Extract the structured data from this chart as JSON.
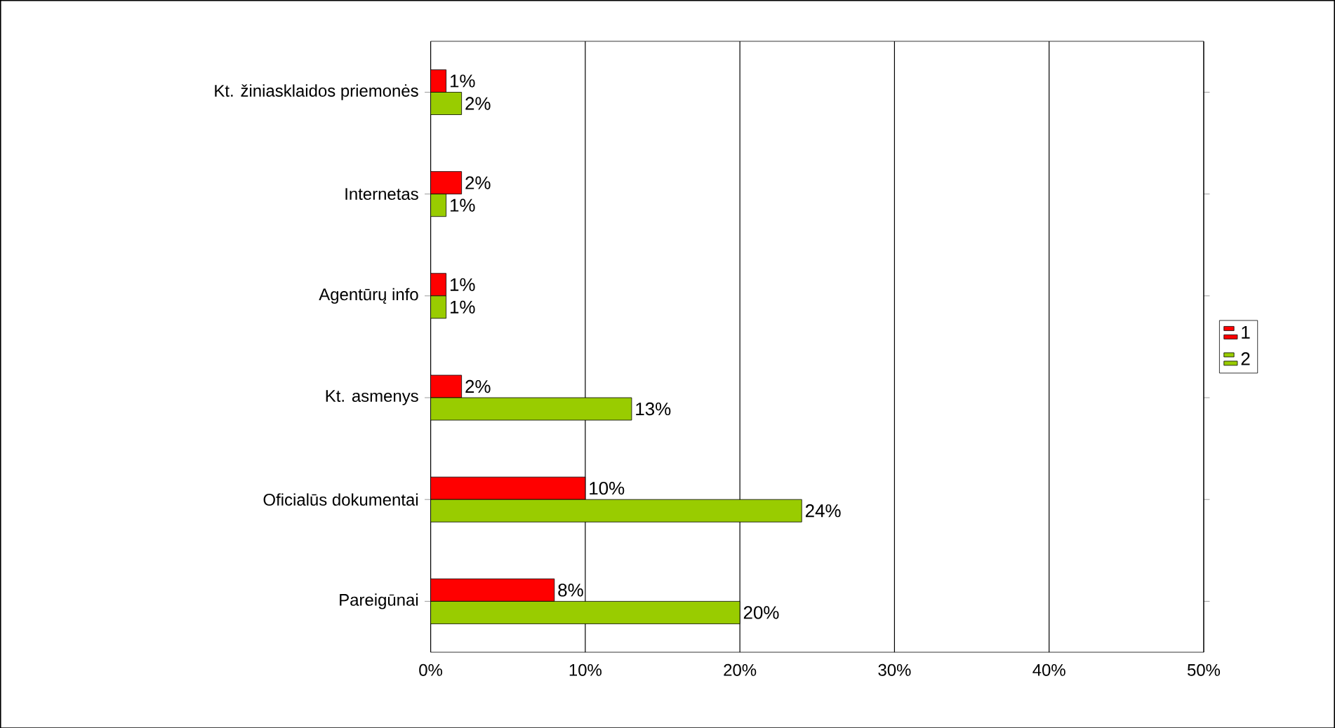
{
  "chart_data": {
    "type": "bar",
    "orientation": "horizontal",
    "categories": [
      "Kt. žiniasklaidos priemonės",
      "Internetas",
      "Agentūrų info",
      "Kt. asmenys",
      "Oficialūs dokumentai",
      "Pareigūnai"
    ],
    "series": [
      {
        "name": "1",
        "color": "#ff0000",
        "values": [
          1,
          2,
          1,
          2,
          10,
          8
        ],
        "value_labels": [
          "1%",
          "2%",
          "1%",
          "2%",
          "10%",
          "8%"
        ]
      },
      {
        "name": "2",
        "color": "#99cc00",
        "values": [
          2,
          1,
          1,
          13,
          24,
          20
        ],
        "value_labels": [
          "2%",
          "1%",
          "1%",
          "13%",
          "24%",
          "20%"
        ]
      }
    ],
    "xlim": [
      0,
      50
    ],
    "xticks": [
      {
        "value": 0,
        "label": "0%"
      },
      {
        "value": 10,
        "label": "10%"
      },
      {
        "value": 20,
        "label": "20%"
      },
      {
        "value": 30,
        "label": "30%"
      },
      {
        "value": 40,
        "label": "40%"
      },
      {
        "value": 50,
        "label": "50%"
      }
    ],
    "grid": "x",
    "legend": "right"
  }
}
